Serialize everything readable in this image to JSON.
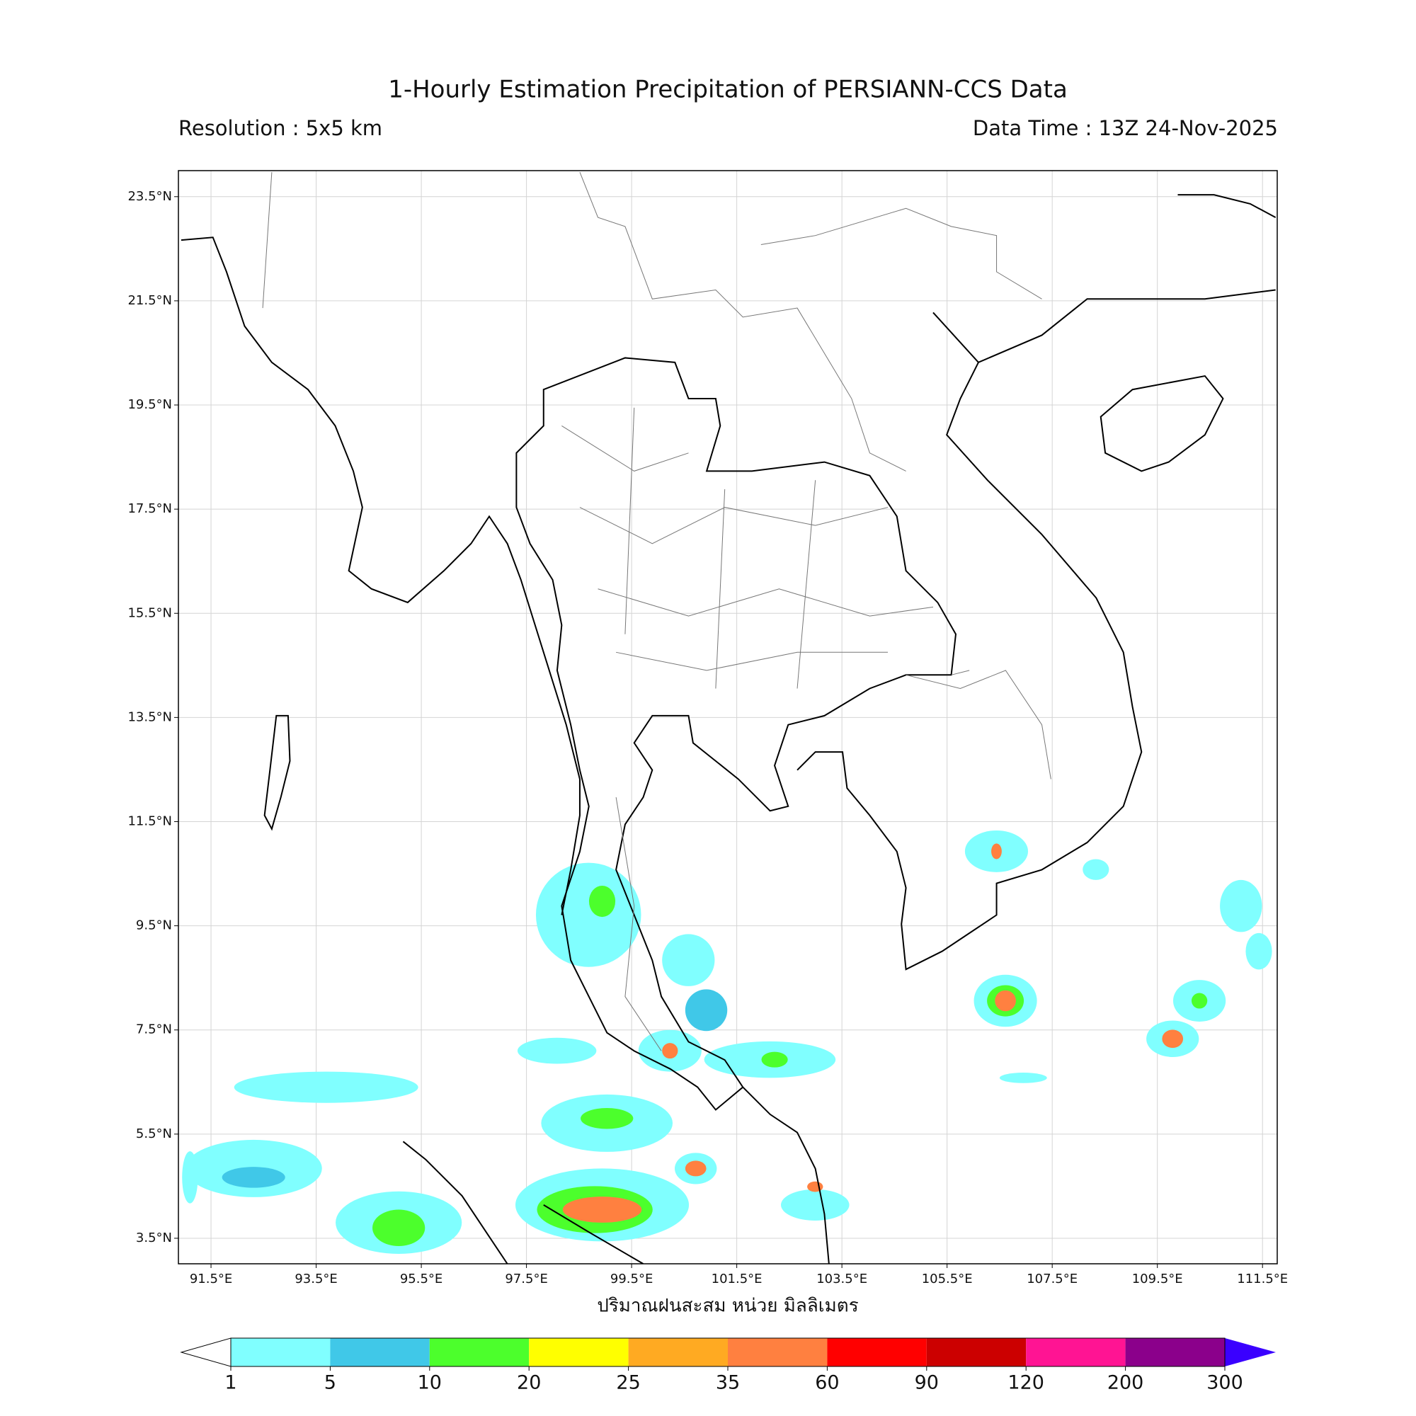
{
  "header": {
    "title": "1-Hourly Estimation Precipitation of PERSIANN-CCS Data",
    "resolution": "Resolution : 5x5 km",
    "data_time": "Data Time : 13Z 24-Nov-2025"
  },
  "map": {
    "xlim": [
      90.88,
      111.78
    ],
    "ylim": [
      3.01,
      24.0
    ],
    "grid": true,
    "xticks": [
      {
        "value": 91.5,
        "label": "91.5°E"
      },
      {
        "value": 93.5,
        "label": "93.5°E"
      },
      {
        "value": 95.5,
        "label": "95.5°E"
      },
      {
        "value": 97.5,
        "label": "97.5°E"
      },
      {
        "value": 99.5,
        "label": "99.5°E"
      },
      {
        "value": 101.5,
        "label": "101.5°E"
      },
      {
        "value": 103.5,
        "label": "103.5°E"
      },
      {
        "value": 105.5,
        "label": "105.5°E"
      },
      {
        "value": 107.5,
        "label": "107.5°E"
      },
      {
        "value": 109.5,
        "label": "109.5°E"
      },
      {
        "value": 111.5,
        "label": "111.5°E"
      }
    ],
    "yticks": [
      {
        "value": 3.5,
        "label": "3.5°N"
      },
      {
        "value": 5.5,
        "label": "5.5°N"
      },
      {
        "value": 7.5,
        "label": "7.5°N"
      },
      {
        "value": 9.5,
        "label": "9.5°N"
      },
      {
        "value": 11.5,
        "label": "11.5°N"
      },
      {
        "value": 13.5,
        "label": "13.5°N"
      },
      {
        "value": 15.5,
        "label": "15.5°N"
      },
      {
        "value": 17.5,
        "label": "17.5°N"
      },
      {
        "value": 19.5,
        "label": "19.5°N"
      },
      {
        "value": 21.5,
        "label": "21.5°N"
      },
      {
        "value": 23.5,
        "label": "23.5°N"
      }
    ]
  },
  "rain_cells": [
    {
      "lon": 98.94,
      "lat": 4.14,
      "mm": 3,
      "w": 3.3,
      "h": 1.4
    },
    {
      "lon": 98.8,
      "lat": 4.05,
      "mm": 12,
      "w": 2.2,
      "h": 0.9
    },
    {
      "lon": 98.94,
      "lat": 4.05,
      "mm": 40,
      "w": 1.5,
      "h": 0.5
    },
    {
      "lon": 99.03,
      "lat": 5.71,
      "mm": 3,
      "w": 2.5,
      "h": 1.1
    },
    {
      "lon": 99.03,
      "lat": 5.8,
      "mm": 12,
      "w": 1.0,
      "h": 0.4
    },
    {
      "lon": 100.72,
      "lat": 4.84,
      "mm": 4,
      "w": 0.8,
      "h": 0.6
    },
    {
      "lon": 100.72,
      "lat": 4.84,
      "mm": 40,
      "w": 0.4,
      "h": 0.3
    },
    {
      "lon": 106.61,
      "lat": 8.06,
      "mm": 3,
      "w": 1.2,
      "h": 1.0
    },
    {
      "lon": 106.61,
      "lat": 8.06,
      "mm": 12,
      "w": 0.7,
      "h": 0.6
    },
    {
      "lon": 106.61,
      "lat": 8.06,
      "mm": 40,
      "w": 0.4,
      "h": 0.4
    },
    {
      "lon": 109.79,
      "lat": 7.33,
      "mm": 3,
      "w": 1.0,
      "h": 0.7
    },
    {
      "lon": 109.79,
      "lat": 7.33,
      "mm": 40,
      "w": 0.4,
      "h": 0.35
    },
    {
      "lon": 110.3,
      "lat": 8.06,
      "mm": 4,
      "w": 1.0,
      "h": 0.8
    },
    {
      "lon": 110.3,
      "lat": 8.06,
      "mm": 12,
      "w": 0.3,
      "h": 0.3
    },
    {
      "lon": 106.44,
      "lat": 10.93,
      "mm": 4,
      "w": 1.2,
      "h": 0.8
    },
    {
      "lon": 106.44,
      "lat": 10.93,
      "mm": 40,
      "w": 0.2,
      "h": 0.3
    },
    {
      "lon": 95.07,
      "lat": 3.8,
      "mm": 3,
      "w": 2.4,
      "h": 1.2
    },
    {
      "lon": 95.07,
      "lat": 3.7,
      "mm": 12,
      "w": 1.0,
      "h": 0.7
    },
    {
      "lon": 92.31,
      "lat": 4.84,
      "mm": 3,
      "w": 2.6,
      "h": 1.1
    },
    {
      "lon": 92.31,
      "lat": 4.67,
      "mm": 7,
      "w": 1.2,
      "h": 0.4
    },
    {
      "lon": 93.69,
      "lat": 6.4,
      "mm": 3,
      "w": 3.5,
      "h": 0.6
    },
    {
      "lon": 98.68,
      "lat": 9.71,
      "mm": 3,
      "w": 2.0,
      "h": 2.0
    },
    {
      "lon": 98.94,
      "lat": 9.97,
      "mm": 12,
      "w": 0.5,
      "h": 0.6
    },
    {
      "lon": 100.58,
      "lat": 8.84,
      "mm": 3,
      "w": 1.0,
      "h": 1.0
    },
    {
      "lon": 100.92,
      "lat": 7.88,
      "mm": 7,
      "w": 0.8,
      "h": 0.8
    },
    {
      "lon": 102.13,
      "lat": 6.93,
      "mm": 3,
      "w": 2.5,
      "h": 0.7
    },
    {
      "lon": 102.22,
      "lat": 6.93,
      "mm": 12,
      "w": 0.5,
      "h": 0.3
    },
    {
      "lon": 100.23,
      "lat": 7.1,
      "mm": 4,
      "w": 1.2,
      "h": 0.8
    },
    {
      "lon": 100.23,
      "lat": 7.1,
      "mm": 40,
      "w": 0.3,
      "h": 0.3
    },
    {
      "lon": 102.99,
      "lat": 4.14,
      "mm": 4,
      "w": 1.3,
      "h": 0.6
    },
    {
      "lon": 102.99,
      "lat": 4.49,
      "mm": 40,
      "w": 0.3,
      "h": 0.2
    },
    {
      "lon": 111.09,
      "lat": 9.88,
      "mm": 3,
      "w": 0.8,
      "h": 1.0
    },
    {
      "lon": 111.43,
      "lat": 9.01,
      "mm": 3,
      "w": 0.5,
      "h": 0.7
    },
    {
      "lon": 98.08,
      "lat": 7.1,
      "mm": 3,
      "w": 1.5,
      "h": 0.5
    },
    {
      "lon": 91.1,
      "lat": 4.67,
      "mm": 3,
      "w": 0.3,
      "h": 1.0
    },
    {
      "lon": 108.33,
      "lat": 10.58,
      "mm": 3,
      "w": 0.5,
      "h": 0.4
    },
    {
      "lon": 106.95,
      "lat": 6.58,
      "mm": 4,
      "w": 0.9,
      "h": 0.2
    }
  ],
  "colorbar": {
    "label": "ปริมาณฝนสะสม หน่วย มิลลิเมตร",
    "boundaries": [
      1,
      5,
      10,
      20,
      25,
      35,
      60,
      90,
      120,
      200,
      300
    ],
    "colors": [
      "#80ffff",
      "#40c8e8",
      "#4cff2c",
      "#ffff00",
      "#ffaa22",
      "#ff8040",
      "#ff0000",
      "#cc0000",
      "#ff1493",
      "#8b008b"
    ],
    "under_color": "#ffffff",
    "over_color": "#3a00ff"
  }
}
